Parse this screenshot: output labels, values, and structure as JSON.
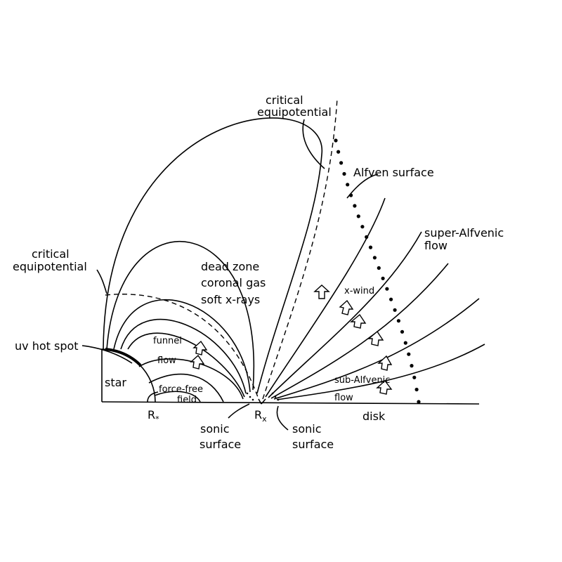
{
  "labels": {
    "critical_top_1": "critical",
    "critical_top_2": "equipotential",
    "alfven_surface": "Alfven surface",
    "super_alfvenic_1": "super-Alfvenic",
    "super_alfvenic_2": "flow",
    "critical_left_1": "critical",
    "critical_left_2": "equipotential",
    "dead_zone": "dead zone",
    "coronal_gas": "coronal gas",
    "soft_xrays": "soft x-rays",
    "x_wind": "x-wind",
    "funnel": "funnel",
    "flow": "flow",
    "uv_hot_spot": "uv hot spot",
    "star": "star",
    "force_free_1": "force-free",
    "force_free_2": "field",
    "r_star": "R",
    "r_star_sub": "*",
    "r_x": "R",
    "r_x_sub": "x",
    "sonic_left_1": "sonic",
    "sonic_left_2": "surface",
    "sonic_right_1": "sonic",
    "sonic_right_2": "surface",
    "sub_alfvenic_1": "sub-Alfvenic",
    "sub_alfvenic_2": "flow",
    "disk": "disk"
  }
}
